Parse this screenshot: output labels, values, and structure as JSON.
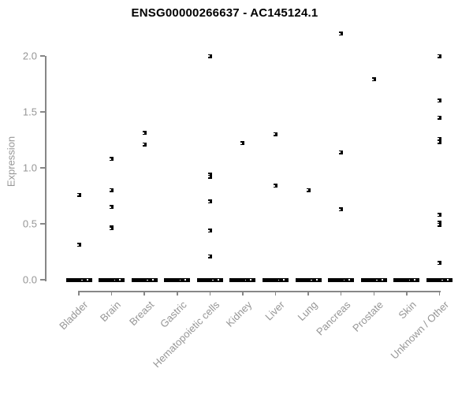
{
  "title": "ENSG00000266637 - AC145124.1",
  "chart_data": {
    "type": "scatter",
    "subtype": "strip-plot",
    "title": "ENSG00000266637 - AC145124.1",
    "xlabel": "",
    "ylabel": "Expression",
    "ylim": [
      0,
      2.2
    ],
    "ytick_labels": [
      "0.0",
      "0.5",
      "1.0",
      "1.5",
      "2.0"
    ],
    "ytick_values": [
      0.0,
      0.5,
      1.0,
      1.5,
      2.0
    ],
    "grid": false,
    "legend": "none",
    "marker": "open-square-black",
    "colors": {
      "point": "#000000",
      "axis": "#878787",
      "tick_label": "#969696",
      "title": "#000000",
      "background": "#ffffff"
    },
    "categories": [
      "Bladder",
      "Brain",
      "Breast",
      "Gastric",
      "Hematopoietic cells",
      "Kidney",
      "Liver",
      "Lung",
      "Pancreas",
      "Prostate",
      "Skin",
      "Unknown / Other"
    ],
    "series": [
      {
        "category": "Bladder",
        "values": [
          0.76,
          0.31
        ],
        "zero_cluster": true
      },
      {
        "category": "Brain",
        "values": [
          1.08,
          0.8,
          0.65,
          0.47,
          0.46
        ],
        "zero_cluster": true
      },
      {
        "category": "Breast",
        "values": [
          1.31,
          1.21
        ],
        "zero_cluster": true
      },
      {
        "category": "Gastric",
        "values": [],
        "zero_cluster": true
      },
      {
        "category": "Hematopoietic cells",
        "values": [
          2.0,
          0.94,
          0.92,
          0.7,
          0.44,
          0.21
        ],
        "zero_cluster": true
      },
      {
        "category": "Kidney",
        "values": [
          1.22
        ],
        "zero_cluster": true
      },
      {
        "category": "Liver",
        "values": [
          1.3,
          0.84
        ],
        "zero_cluster": true
      },
      {
        "category": "Lung",
        "values": [
          0.8
        ],
        "zero_cluster": true
      },
      {
        "category": "Pancreas",
        "values": [
          2.2,
          1.14,
          0.63
        ],
        "zero_cluster": true
      },
      {
        "category": "Prostate",
        "values": [
          1.79
        ],
        "zero_cluster": true
      },
      {
        "category": "Skin",
        "values": [],
        "zero_cluster": true
      },
      {
        "category": "Unknown / Other",
        "values": [
          2.0,
          1.6,
          1.45,
          1.26,
          1.23,
          0.58,
          0.51,
          0.49,
          0.15
        ],
        "zero_cluster": true
      }
    ],
    "zero_cluster_note": "dense overlapping points at expression 0 form a thick black bar under every category"
  }
}
